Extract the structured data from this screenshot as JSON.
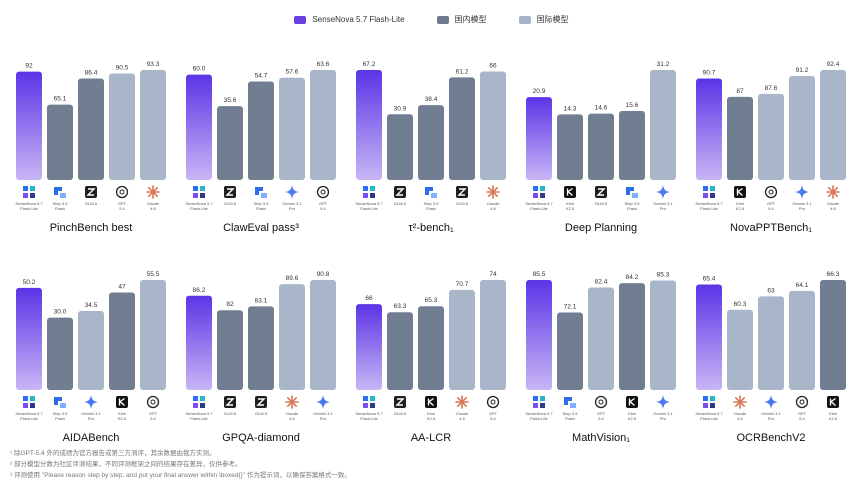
{
  "legend": {
    "items": [
      {
        "label": "SenseNova 5.7 Flash-Lite",
        "color": "#6B3FE0"
      },
      {
        "label": "国内模型",
        "color": "#6E7A8C"
      },
      {
        "label": "国际模型",
        "color": "#A6B3C6"
      }
    ]
  },
  "colors": {
    "ours_top": "#5B34E6",
    "ours_bottom": "#C8B6F5",
    "domestic": "#717D90",
    "international": "#A9B6C9"
  },
  "chart_data": [
    {
      "type": "bar",
      "title": "PinchBench best",
      "categories": [
        "SenseNova 5.7 Flash-Lite",
        "Step 3.5 Flash",
        "GLM-5",
        "GPT 5.4",
        "Claude 4.6"
      ],
      "values": [
        92,
        65.1,
        86.4,
        90.5,
        93.3
      ],
      "labels": [
        "92",
        "65.1",
        "86.4",
        "90.5",
        "93.3"
      ],
      "groups": [
        "ours",
        "domestic",
        "domestic",
        "international",
        "international"
      ],
      "icons": [
        "sensenova-icon",
        "stepfun-icon",
        "zhipu-icon",
        "openai-icon",
        "claude-icon"
      ]
    },
    {
      "type": "bar",
      "title": "ClawEval pass³",
      "categories": [
        "SenseNova 5.7 Flash-Lite",
        "GLM-5",
        "Step 3.5 Flash",
        "Gemini 3.1 Pro",
        "GPT 5.4"
      ],
      "values": [
        60.0,
        35.6,
        54.7,
        57.6,
        63.6
      ],
      "labels": [
        "60.0",
        "35.6",
        "54.7",
        "57.6",
        "63.6"
      ],
      "groups": [
        "ours",
        "domestic",
        "domestic",
        "international",
        "international"
      ],
      "icons": [
        "sensenova-icon",
        "zhipu-icon",
        "stepfun-icon",
        "gemini-icon",
        "openai-icon"
      ]
    },
    {
      "type": "bar",
      "title": "τ²-bench₁",
      "categories": [
        "SenseNova 5.7 Flash-Lite",
        "GLM-5",
        "Step 3.5 Flash",
        "GLM-5",
        "Claude 4.6"
      ],
      "values": [
        67.2,
        30.9,
        38.4,
        61.2,
        66
      ],
      "labels": [
        "67.2",
        "30.9",
        "38.4",
        "61.2",
        "66"
      ],
      "groups": [
        "ours",
        "domestic",
        "domestic",
        "domestic",
        "international"
      ],
      "icons": [
        "sensenova-icon",
        "zhipu-icon",
        "stepfun-icon",
        "zhipu-icon",
        "claude-icon"
      ]
    },
    {
      "type": "bar",
      "title": "Deep Planning",
      "categories": [
        "SenseNova 5.7 Flash-Lite",
        "Kimi K2.5",
        "GLM-5",
        "Step 3.5 Flash",
        "Gemini 3.1 Pro"
      ],
      "values": [
        20.9,
        14.3,
        14.6,
        15.6,
        31.2
      ],
      "labels": [
        "20.9",
        "14.3",
        "14.6",
        "15.6",
        "31.2"
      ],
      "groups": [
        "ours",
        "domestic",
        "domestic",
        "domestic",
        "international"
      ],
      "icons": [
        "sensenova-icon",
        "kimi-icon",
        "zhipu-icon",
        "stepfun-icon",
        "gemini-icon"
      ]
    },
    {
      "type": "bar",
      "title": "NovaPPTBench₁",
      "categories": [
        "SenseNova 5.7 Flash-Lite",
        "Kimi K2.5",
        "GPT 5.4",
        "Gemini 3.1 Pro",
        "Claude 4.6"
      ],
      "values": [
        90.7,
        87,
        87.6,
        91.2,
        92.4
      ],
      "labels": [
        "90.7",
        "87",
        "87.6",
        "91.2",
        "92.4"
      ],
      "groups": [
        "ours",
        "domestic",
        "international",
        "international",
        "international"
      ],
      "icons": [
        "sensenova-icon",
        "kimi-icon",
        "openai-icon",
        "gemini-icon",
        "claude-icon"
      ]
    },
    {
      "type": "bar",
      "title": "AIDABench",
      "categories": [
        "SenseNova 5.7 Flash-Lite",
        "Step 3.5 Flash",
        "Gemini 3.1 Pro",
        "Kimi K2.5",
        "GPT 5.4"
      ],
      "values": [
        50.2,
        30.0,
        34.5,
        47,
        55.5
      ],
      "labels": [
        "50.2",
        "30.0",
        "34.5",
        "47",
        "55.5"
      ],
      "groups": [
        "ours",
        "domestic",
        "international",
        "domestic",
        "international"
      ],
      "icons": [
        "sensenova-icon",
        "stepfun-icon",
        "gemini-icon",
        "kimi-icon",
        "openai-icon"
      ]
    },
    {
      "type": "bar",
      "title": "GPQA-diamond",
      "categories": [
        "SenseNova 5.7 Flash-Lite",
        "GLM-5",
        "GLM-5",
        "Claude 4.6",
        "Gemini 3.1 Pro"
      ],
      "values": [
        86.2,
        82,
        83.1,
        89.6,
        90.8
      ],
      "labels": [
        "86.2",
        "82",
        "83.1",
        "89.6",
        "90.8"
      ],
      "groups": [
        "ours",
        "domestic",
        "domestic",
        "international",
        "international"
      ],
      "icons": [
        "sensenova-icon",
        "zhipu-icon",
        "zhipu-icon",
        "claude-icon",
        "gemini-icon"
      ]
    },
    {
      "type": "bar",
      "title": "AA-LCR",
      "categories": [
        "SenseNova 5.7 Flash-Lite",
        "GLM-5",
        "Kimi K2.5",
        "Claude 4.6",
        "GPT 5.4"
      ],
      "values": [
        66,
        63.3,
        65.3,
        70.7,
        74
      ],
      "labels": [
        "66",
        "63.3",
        "65.3",
        "70.7",
        "74"
      ],
      "groups": [
        "ours",
        "domestic",
        "domestic",
        "international",
        "international"
      ],
      "icons": [
        "sensenova-icon",
        "zhipu-icon",
        "kimi-icon",
        "claude-icon",
        "openai-icon"
      ]
    },
    {
      "type": "bar",
      "title": "MathVision₁",
      "categories": [
        "SenseNova 5.7 Flash-Lite",
        "Step 3.5 Flash",
        "GPT 5.4",
        "Kimi K2.5",
        "Gemini 3.1 Pro"
      ],
      "values": [
        85.5,
        72.1,
        82.4,
        84.2,
        85.3
      ],
      "labels": [
        "85.5",
        "72.1",
        "82.4",
        "84.2",
        "85.3"
      ],
      "groups": [
        "ours",
        "domestic",
        "international",
        "domestic",
        "international"
      ],
      "icons": [
        "sensenova-icon",
        "stepfun-icon",
        "openai-icon",
        "kimi-icon",
        "gemini-icon"
      ]
    },
    {
      "type": "bar",
      "title": "OCRBenchV2",
      "categories": [
        "SenseNova 5.7 Flash-Lite",
        "Claude 4.6",
        "Gemini 3.1 Pro",
        "GPT 5.4",
        "Kimi K2.5"
      ],
      "values": [
        65.4,
        60.3,
        63,
        64.1,
        66.3
      ],
      "labels": [
        "65.4",
        "60.3",
        "63",
        "64.1",
        "66.3"
      ],
      "groups": [
        "ours",
        "international",
        "international",
        "international",
        "domestic"
      ],
      "icons": [
        "sensenova-icon",
        "claude-icon",
        "gemini-icon",
        "openai-icon",
        "kimi-icon"
      ]
    }
  ],
  "footnotes": [
    "¹ 除GPT-5.4 外的成绩为官方报告或第三方测评，其余数据由我方实测。",
    "² 部分模型分数为社区评测结果，不同评测框架之间的结果存在差异，仅供参考。",
    "³ 评测使用 \"Please reason step by step, and put your final answer within \\boxed{}\" 作为提示词，以确保答案格式一致。"
  ]
}
